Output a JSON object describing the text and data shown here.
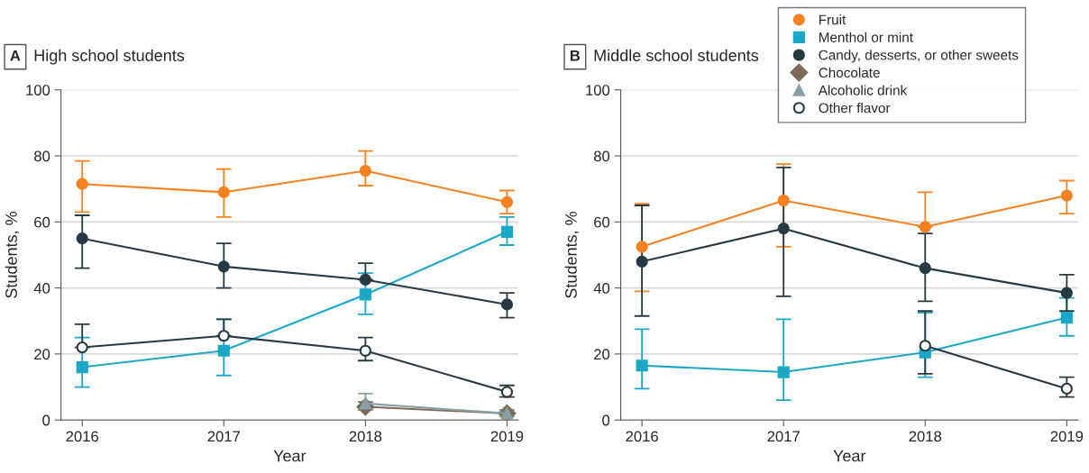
{
  "chart_data": [
    {
      "type": "line",
      "title": "High school students",
      "annotations": [
        "A"
      ],
      "xlabel": "Year",
      "ylabel": "Students, %",
      "x": [
        2016,
        2017,
        2018,
        2019
      ],
      "xlim": [
        2015.85,
        2019.08
      ],
      "xticks": [
        2016,
        2017,
        2018,
        2019
      ],
      "ylim": [
        0,
        100
      ],
      "yticks": [
        0,
        20,
        40,
        60,
        80,
        100
      ],
      "grid": "y",
      "legend": false,
      "series": [
        {
          "color": "#f5821f",
          "marker": "circle",
          "values": [
            71.5,
            69,
            75.5,
            66
          ],
          "errors": [
            [
              63,
              78.5
            ],
            [
              61.5,
              76
            ],
            [
              71,
              81.5
            ],
            [
              62.5,
              69.5
            ]
          ]
        },
        {
          "color": "#1ba7c6",
          "marker": "square",
          "values": [
            16,
            21,
            38,
            57
          ],
          "errors": [
            [
              10,
              25
            ],
            [
              13.5,
              30.5
            ],
            [
              32,
              44.5
            ],
            [
              53,
              61.5
            ]
          ]
        },
        {
          "color": "#253a42",
          "marker": "circle",
          "values": [
            55,
            46.5,
            42.5,
            35
          ],
          "errors": [
            [
              46,
              62
            ],
            [
              40,
              53.5
            ],
            [
              42.5,
              47.5
            ],
            [
              31,
              38.5
            ]
          ]
        },
        {
          "color": "#7d6b57",
          "marker": "diamond",
          "values": [
            null,
            null,
            4,
            2
          ],
          "errors": [
            null,
            null,
            [
              3,
              5.5
            ],
            [
              1.5,
              3
            ]
          ]
        },
        {
          "color": "#87a0a6",
          "marker": "triangle",
          "values": [
            null,
            null,
            5,
            2
          ],
          "errors": [
            null,
            null,
            [
              3,
              8
            ],
            [
              1,
              3
            ]
          ]
        },
        {
          "color": "#ffffff",
          "marker": "circle",
          "values": [
            22,
            25.5,
            21,
            8.5
          ],
          "errors": [
            [
              22,
              29
            ],
            [
              25.5,
              30.5
            ],
            [
              18,
              25
            ],
            [
              7,
              10.5
            ]
          ]
        }
      ]
    },
    {
      "type": "line",
      "title": "Middle school students",
      "annotations": [
        "B"
      ],
      "xlabel": "Year",
      "ylabel": "Students, %",
      "x": [
        2016,
        2017,
        2018,
        2019
      ],
      "xlim": [
        2015.85,
        2019.08
      ],
      "xticks": [
        2016,
        2017,
        2018,
        2019
      ],
      "ylim": [
        0,
        100
      ],
      "yticks": [
        0,
        20,
        40,
        60,
        80,
        100
      ],
      "grid": "y",
      "legend": "top right",
      "series": [
        {
          "name": "Fruit",
          "color": "#f5821f",
          "marker": "circle",
          "values": [
            52.5,
            66.5,
            58.5,
            68
          ],
          "errors": [
            [
              39,
              65.5
            ],
            [
              52.5,
              77.5
            ],
            [
              58.5,
              69
            ],
            [
              62.5,
              72.5
            ]
          ]
        },
        {
          "name": "Menthol or mint",
          "color": "#1ba7c6",
          "marker": "square",
          "values": [
            16.5,
            14.5,
            20.5,
            31
          ],
          "errors": [
            [
              9.5,
              27.5
            ],
            [
              6,
              30.5
            ],
            [
              13,
              32.5
            ],
            [
              25.5,
              37
            ]
          ]
        },
        {
          "name": "Candy, desserts, or other sweets",
          "color": "#253a42",
          "marker": "circle",
          "values": [
            48,
            58,
            46,
            38.5
          ],
          "errors": [
            [
              31.5,
              65
            ],
            [
              37.5,
              76.5
            ],
            [
              36,
              56.5
            ],
            [
              33,
              44
            ]
          ]
        },
        {
          "name": "Chocolate",
          "color": "#7d6b57",
          "marker": "diamond",
          "values": [
            null,
            null,
            null,
            null
          ]
        },
        {
          "name": "Alcoholic drink",
          "color": "#87a0a6",
          "marker": "triangle",
          "values": [
            null,
            null,
            null,
            null
          ]
        },
        {
          "name": "Other flavor",
          "color": "#ffffff",
          "marker": "circle",
          "values": [
            null,
            null,
            22.5,
            9.5
          ],
          "errors": [
            null,
            null,
            [
              14,
              33
            ],
            [
              7,
              13
            ]
          ]
        }
      ]
    }
  ]
}
